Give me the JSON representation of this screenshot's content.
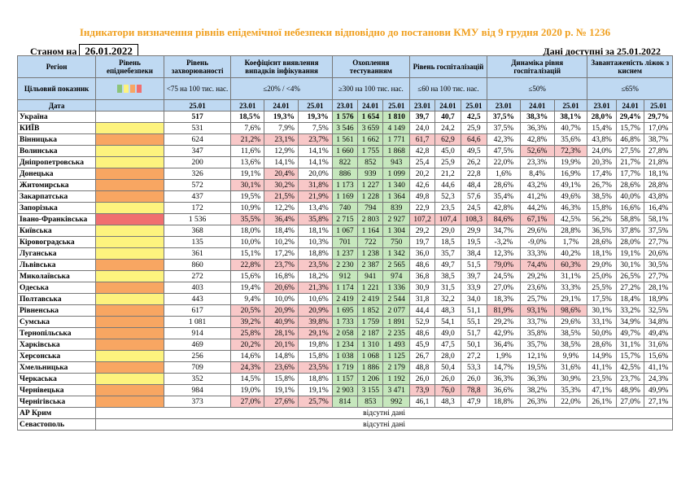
{
  "title": "Індикатори визначення рівнів епідемічної небезпеки відповідно до постанови КМУ від 9 грудня 2020 р. № 1236",
  "as_of_label": "Станом на",
  "as_of_date": "26.01.2022",
  "available_label": "Дані доступні за 25.01.2022",
  "headers": {
    "region": "Регіон",
    "level": "Рівень епіднебезпеки",
    "incidence": "Рівень захворюваності",
    "detection": "Коефіцієнт виявлення випадків інфікування",
    "testing": "Охоплення тестуванням",
    "hosp": "Рівень госпіталізацій",
    "hosp_dyn": "Динаміка рівня госпіталізацій",
    "oxygen": "Завантаженість ліжок з киснем"
  },
  "targets": {
    "label": "Цільовий показник",
    "incidence": "<75 на 100 тис. нас.",
    "detection": "≤20% / <4%",
    "testing": "≥300 на 100 тис. нас.",
    "hosp": "≤60 на 100 тис. нас.",
    "hosp_dyn": "≤50%",
    "oxygen": "≤65%"
  },
  "date_row": {
    "label": "Дата",
    "incidence": "25.01",
    "d1": "23.01",
    "d2": "24.01",
    "d3": "25.01"
  },
  "rows": [
    {
      "name": "Україна",
      "level": "",
      "inc": "517",
      "det": [
        "18,5%",
        "19,3%",
        "19,3%"
      ],
      "test": [
        "1 576",
        "1 654",
        "1 810"
      ],
      "hosp": [
        "39,7",
        "40,7",
        "42,5"
      ],
      "dyn": [
        "37,5%",
        "38,3%",
        "38,1%"
      ],
      "oxy": [
        "28,0%",
        "29,4%",
        "29,7%"
      ],
      "total": true
    },
    {
      "name": "КИЇВ",
      "level": "yellow",
      "inc": "531",
      "det": [
        "7,6%",
        "7,9%",
        "7,5%"
      ],
      "test": [
        "3 546",
        "3 659",
        "4 149"
      ],
      "hosp": [
        "24,0",
        "24,2",
        "25,9"
      ],
      "dyn": [
        "37,5%",
        "36,3%",
        "40,7%"
      ],
      "oxy": [
        "15,4%",
        "15,7%",
        "17,0%"
      ]
    },
    {
      "name": "Вінницька",
      "level": "orange",
      "inc": "624",
      "det": [
        "21,2%",
        "23,1%",
        "23,7%"
      ],
      "test": [
        "1 561",
        "1 662",
        "1 771"
      ],
      "hosp": [
        "61,7",
        "62,9",
        "64,6"
      ],
      "dyn": [
        "42,3%",
        "42,8%",
        "35,6%"
      ],
      "oxy": [
        "43,8%",
        "46,8%",
        "38,7%"
      ]
    },
    {
      "name": "Волинська",
      "level": "yellow",
      "inc": "347",
      "det": [
        "11,6%",
        "12,9%",
        "14,1%"
      ],
      "test": [
        "1 660",
        "1 755",
        "1 868"
      ],
      "hosp": [
        "42,8",
        "45,0",
        "49,5"
      ],
      "dyn": [
        "47,5%",
        "52,6%",
        "72,3%"
      ],
      "oxy": [
        "24,0%",
        "27,5%",
        "27,8%"
      ]
    },
    {
      "name": "Дніпропетровська",
      "level": "yellow",
      "inc": "200",
      "det": [
        "13,6%",
        "14,1%",
        "14,1%"
      ],
      "test": [
        "822",
        "852",
        "943"
      ],
      "hosp": [
        "25,4",
        "25,9",
        "26,2"
      ],
      "dyn": [
        "22,0%",
        "23,3%",
        "19,9%"
      ],
      "oxy": [
        "20,3%",
        "21,7%",
        "21,8%"
      ]
    },
    {
      "name": "Донецька",
      "level": "orange",
      "inc": "326",
      "det": [
        "19,1%",
        "20,4%",
        "20,0%"
      ],
      "test": [
        "886",
        "939",
        "1 099"
      ],
      "hosp": [
        "20,2",
        "21,2",
        "22,8"
      ],
      "dyn": [
        "1,6%",
        "8,4%",
        "16,9%"
      ],
      "oxy": [
        "17,4%",
        "17,7%",
        "18,1%"
      ]
    },
    {
      "name": "Житомирська",
      "level": "orange",
      "inc": "572",
      "det": [
        "30,1%",
        "30,2%",
        "31,8%"
      ],
      "test": [
        "1 173",
        "1 227",
        "1 340"
      ],
      "hosp": [
        "42,6",
        "44,6",
        "48,4"
      ],
      "dyn": [
        "28,6%",
        "43,2%",
        "49,1%"
      ],
      "oxy": [
        "26,7%",
        "28,6%",
        "28,8%"
      ]
    },
    {
      "name": "Закарпатська",
      "level": "orange",
      "inc": "437",
      "det": [
        "19,5%",
        "21,5%",
        "21,9%"
      ],
      "test": [
        "1 169",
        "1 228",
        "1 364"
      ],
      "hosp": [
        "49,8",
        "52,3",
        "57,6"
      ],
      "dyn": [
        "35,4%",
        "41,2%",
        "49,6%"
      ],
      "oxy": [
        "38,5%",
        "40,0%",
        "43,8%"
      ]
    },
    {
      "name": "Запорізька",
      "level": "yellow",
      "inc": "172",
      "det": [
        "10,9%",
        "12,2%",
        "13,4%"
      ],
      "test": [
        "740",
        "794",
        "839"
      ],
      "hosp": [
        "22,9",
        "23,5",
        "24,5"
      ],
      "dyn": [
        "42,8%",
        "44,2%",
        "46,3%"
      ],
      "oxy": [
        "15,8%",
        "16,6%",
        "16,4%"
      ]
    },
    {
      "name": "Івано-Франківська",
      "level": "red",
      "inc": "1 536",
      "det": [
        "35,5%",
        "36,4%",
        "35,8%"
      ],
      "test": [
        "2 715",
        "2 803",
        "2 927"
      ],
      "hosp": [
        "107,2",
        "107,4",
        "108,3"
      ],
      "dyn": [
        "84,6%",
        "67,1%",
        "42,5%"
      ],
      "oxy": [
        "56,2%",
        "58,8%",
        "58,1%"
      ]
    },
    {
      "name": "Київська",
      "level": "yellow",
      "inc": "368",
      "det": [
        "18,0%",
        "18,4%",
        "18,1%"
      ],
      "test": [
        "1 067",
        "1 164",
        "1 304"
      ],
      "hosp": [
        "29,2",
        "29,0",
        "29,9"
      ],
      "dyn": [
        "34,7%",
        "29,6%",
        "28,8%"
      ],
      "oxy": [
        "36,5%",
        "37,8%",
        "37,5%"
      ]
    },
    {
      "name": "Кіровоградська",
      "level": "yellow",
      "inc": "135",
      "det": [
        "10,0%",
        "10,2%",
        "10,3%"
      ],
      "test": [
        "701",
        "722",
        "750"
      ],
      "hosp": [
        "19,7",
        "18,5",
        "19,5"
      ],
      "dyn": [
        "-3,2%",
        "-9,0%",
        "1,7%"
      ],
      "oxy": [
        "28,6%",
        "28,0%",
        "27,7%"
      ]
    },
    {
      "name": "Луганська",
      "level": "yellow",
      "inc": "361",
      "det": [
        "15,1%",
        "17,2%",
        "18,8%"
      ],
      "test": [
        "1 237",
        "1 238",
        "1 342"
      ],
      "hosp": [
        "36,0",
        "35,7",
        "38,4"
      ],
      "dyn": [
        "12,3%",
        "33,3%",
        "40,2%"
      ],
      "oxy": [
        "18,1%",
        "19,1%",
        "20,6%"
      ]
    },
    {
      "name": "Львівська",
      "level": "orange",
      "inc": "860",
      "det": [
        "22,8%",
        "23,7%",
        "23,5%"
      ],
      "test": [
        "2 230",
        "2 387",
        "2 565"
      ],
      "hosp": [
        "48,6",
        "49,7",
        "51,5"
      ],
      "dyn": [
        "79,0%",
        "74,4%",
        "60,3%"
      ],
      "oxy": [
        "29,0%",
        "30,1%",
        "30,5%"
      ]
    },
    {
      "name": "Миколаївська",
      "level": "yellow",
      "inc": "272",
      "det": [
        "15,6%",
        "16,8%",
        "18,2%"
      ],
      "test": [
        "912",
        "941",
        "974"
      ],
      "hosp": [
        "36,8",
        "38,5",
        "39,7"
      ],
      "dyn": [
        "24,5%",
        "29,2%",
        "31,1%"
      ],
      "oxy": [
        "25,0%",
        "26,5%",
        "27,7%"
      ]
    },
    {
      "name": "Одеська",
      "level": "orange",
      "inc": "403",
      "det": [
        "19,4%",
        "20,6%",
        "21,3%"
      ],
      "test": [
        "1 174",
        "1 221",
        "1 336"
      ],
      "hosp": [
        "30,9",
        "31,5",
        "33,9"
      ],
      "dyn": [
        "27,0%",
        "23,6%",
        "33,3%"
      ],
      "oxy": [
        "25,5%",
        "27,2%",
        "28,1%"
      ]
    },
    {
      "name": "Полтавська",
      "level": "yellow",
      "inc": "443",
      "det": [
        "9,4%",
        "10,0%",
        "10,6%"
      ],
      "test": [
        "2 419",
        "2 419",
        "2 544"
      ],
      "hosp": [
        "31,8",
        "32,2",
        "34,0"
      ],
      "dyn": [
        "18,3%",
        "25,7%",
        "29,1%"
      ],
      "oxy": [
        "17,5%",
        "18,4%",
        "18,9%"
      ]
    },
    {
      "name": "Рівненська",
      "level": "orange",
      "inc": "617",
      "det": [
        "20,5%",
        "20,9%",
        "20,9%"
      ],
      "test": [
        "1 695",
        "1 852",
        "2 077"
      ],
      "hosp": [
        "44,4",
        "48,3",
        "51,1"
      ],
      "dyn": [
        "81,9%",
        "93,1%",
        "98,6%"
      ],
      "oxy": [
        "30,1%",
        "33,2%",
        "32,5%"
      ]
    },
    {
      "name": "Сумська",
      "level": "orange",
      "inc": "1 081",
      "det": [
        "39,2%",
        "40,9%",
        "39,8%"
      ],
      "test": [
        "1 733",
        "1 759",
        "1 891"
      ],
      "hosp": [
        "52,9",
        "54,1",
        "55,1"
      ],
      "dyn": [
        "29,2%",
        "33,7%",
        "29,6%"
      ],
      "oxy": [
        "33,1%",
        "34,9%",
        "34,8%"
      ]
    },
    {
      "name": "Тернопільська",
      "level": "orange",
      "inc": "914",
      "det": [
        "25,8%",
        "28,1%",
        "29,1%"
      ],
      "test": [
        "2 058",
        "2 187",
        "2 235"
      ],
      "hosp": [
        "48,6",
        "49,0",
        "51,7"
      ],
      "dyn": [
        "42,9%",
        "35,8%",
        "38,5%"
      ],
      "oxy": [
        "50,0%",
        "49,7%",
        "49,4%"
      ]
    },
    {
      "name": "Харківська",
      "level": "orange",
      "inc": "469",
      "det": [
        "20,2%",
        "20,1%",
        "19,8%"
      ],
      "test": [
        "1 234",
        "1 310",
        "1 493"
      ],
      "hosp": [
        "45,9",
        "47,5",
        "50,1"
      ],
      "dyn": [
        "36,4%",
        "35,7%",
        "38,5%"
      ],
      "oxy": [
        "28,6%",
        "31,1%",
        "31,6%"
      ]
    },
    {
      "name": "Херсонська",
      "level": "yellow",
      "inc": "256",
      "det": [
        "14,6%",
        "14,8%",
        "15,8%"
      ],
      "test": [
        "1 038",
        "1 068",
        "1 125"
      ],
      "hosp": [
        "26,7",
        "28,0",
        "27,2"
      ],
      "dyn": [
        "1,9%",
        "12,1%",
        "9,9%"
      ],
      "oxy": [
        "14,9%",
        "15,7%",
        "15,6%"
      ]
    },
    {
      "name": "Хмельницька",
      "level": "orange",
      "inc": "709",
      "det": [
        "24,3%",
        "23,6%",
        "23,5%"
      ],
      "test": [
        "1 719",
        "1 886",
        "2 179"
      ],
      "hosp": [
        "48,8",
        "50,4",
        "53,3"
      ],
      "dyn": [
        "14,7%",
        "19,5%",
        "31,6%"
      ],
      "oxy": [
        "41,1%",
        "42,5%",
        "41,1%"
      ]
    },
    {
      "name": "Черкаська",
      "level": "yellow",
      "inc": "352",
      "det": [
        "14,5%",
        "15,8%",
        "18,8%"
      ],
      "test": [
        "1 157",
        "1 206",
        "1 192"
      ],
      "hosp": [
        "26,0",
        "26,0",
        "26,0"
      ],
      "dyn": [
        "36,3%",
        "36,3%",
        "30,9%"
      ],
      "oxy": [
        "23,5%",
        "23,7%",
        "24,3%"
      ]
    },
    {
      "name": "Чернівецька",
      "level": "orange",
      "inc": "984",
      "det": [
        "19,0%",
        "19,1%",
        "19,1%"
      ],
      "test": [
        "2 903",
        "3 155",
        "3 471"
      ],
      "hosp": [
        "73,9",
        "76,0",
        "78,8"
      ],
      "dyn": [
        "36,6%",
        "38,2%",
        "35,3%"
      ],
      "oxy": [
        "47,1%",
        "48,9%",
        "49,9%"
      ]
    },
    {
      "name": "Чернігівська",
      "level": "orange",
      "inc": "373",
      "det": [
        "27,0%",
        "27,6%",
        "25,7%"
      ],
      "test": [
        "814",
        "853",
        "992"
      ],
      "hosp": [
        "46,1",
        "48,3",
        "47,9"
      ],
      "dyn": [
        "18,8%",
        "26,3%",
        "22,0%"
      ],
      "oxy": [
        "26,1%",
        "27,0%",
        "27,1%"
      ]
    }
  ],
  "extra_rows": [
    {
      "name": "АР Крим",
      "text": "відсутні дані"
    },
    {
      "name": "Севастополь",
      "text": "відсутні дані"
    }
  ],
  "colors": {
    "yellow": "#fdf37e",
    "orange": "#f8a662",
    "red": "#f06f6f",
    "pink": "#f8c8c8",
    "green": "#c6e7bd",
    "header": "#bfd9f2",
    "title": "#f0a020"
  }
}
